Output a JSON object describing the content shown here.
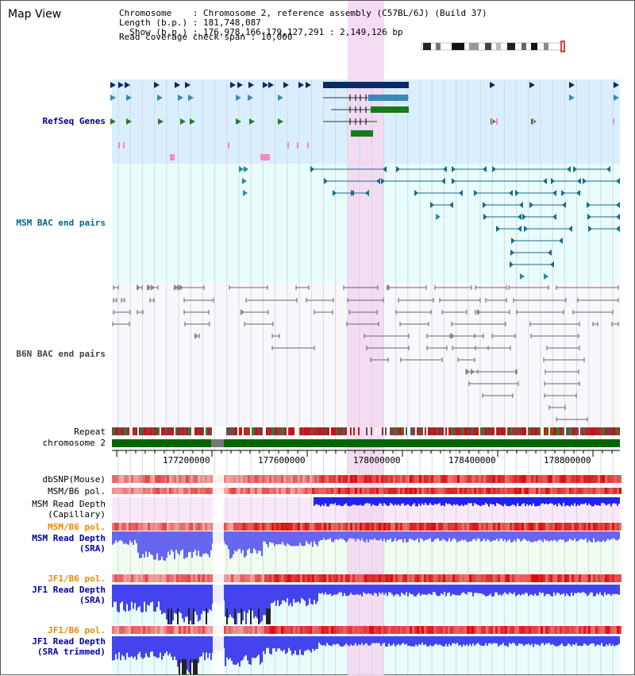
{
  "header": {
    "title": "Map View",
    "chromosome": "Chromosome    : Chromosome 2, reference assembly (C57BL/6J) (Build 37)",
    "length": "Length (b.p.) : 181,748,087",
    "show": "  Show (b.p.) : 176,978,166-179,127,291 : 2,149,126 bp",
    "coverage": "Read coverage check span : 10,000"
  },
  "tracks": {
    "refseq": "RefSeq Genes",
    "msm_bac": "MSM BAC end pairs",
    "b6n_bac": "B6N BAC end pairs",
    "repeat": "Repeat",
    "chromosome": "chromosome 2",
    "dbsnp": "dbSNP(Mouse)",
    "msm_b6_pol_1": "MSM/B6 pol.",
    "msm_depth_cap_1": "MSM Read Depth",
    "msm_depth_cap_2": "(Capillary)",
    "msm_b6_pol_2": "MSM/B6 pol.",
    "msm_depth_sra_1": "MSM Read Depth",
    "msm_depth_sra_2": "(SRA)",
    "jf1_b6_pol_1": "JF1/B6 pol.",
    "jf1_depth_sra_1": "JF1 Read Depth",
    "jf1_depth_sra_2": "(SRA)",
    "jf1_b6_pol_2": "JF1/B6 pol.",
    "jf1_depth_trim_1": "JF1 Read Depth",
    "jf1_depth_trim_2": "(SRA trimmed)"
  },
  "axis": {
    "ticks": [
      "177200000",
      "177600000",
      "178000000",
      "178400000",
      "178800000"
    ]
  },
  "colors": {
    "refseq_label": "#000099",
    "msm_bac_label": "#006688",
    "b6n_bac_label": "#444444",
    "sra_label": "#0000aa",
    "pol_orange": "#ee8800",
    "highlight": "#f5d6f0",
    "refseq_bg": "#d9efff",
    "msm_bg": "#e8fcfc",
    "b6n_bg": "#f8f8fc",
    "chromosome_green": "#006600"
  }
}
